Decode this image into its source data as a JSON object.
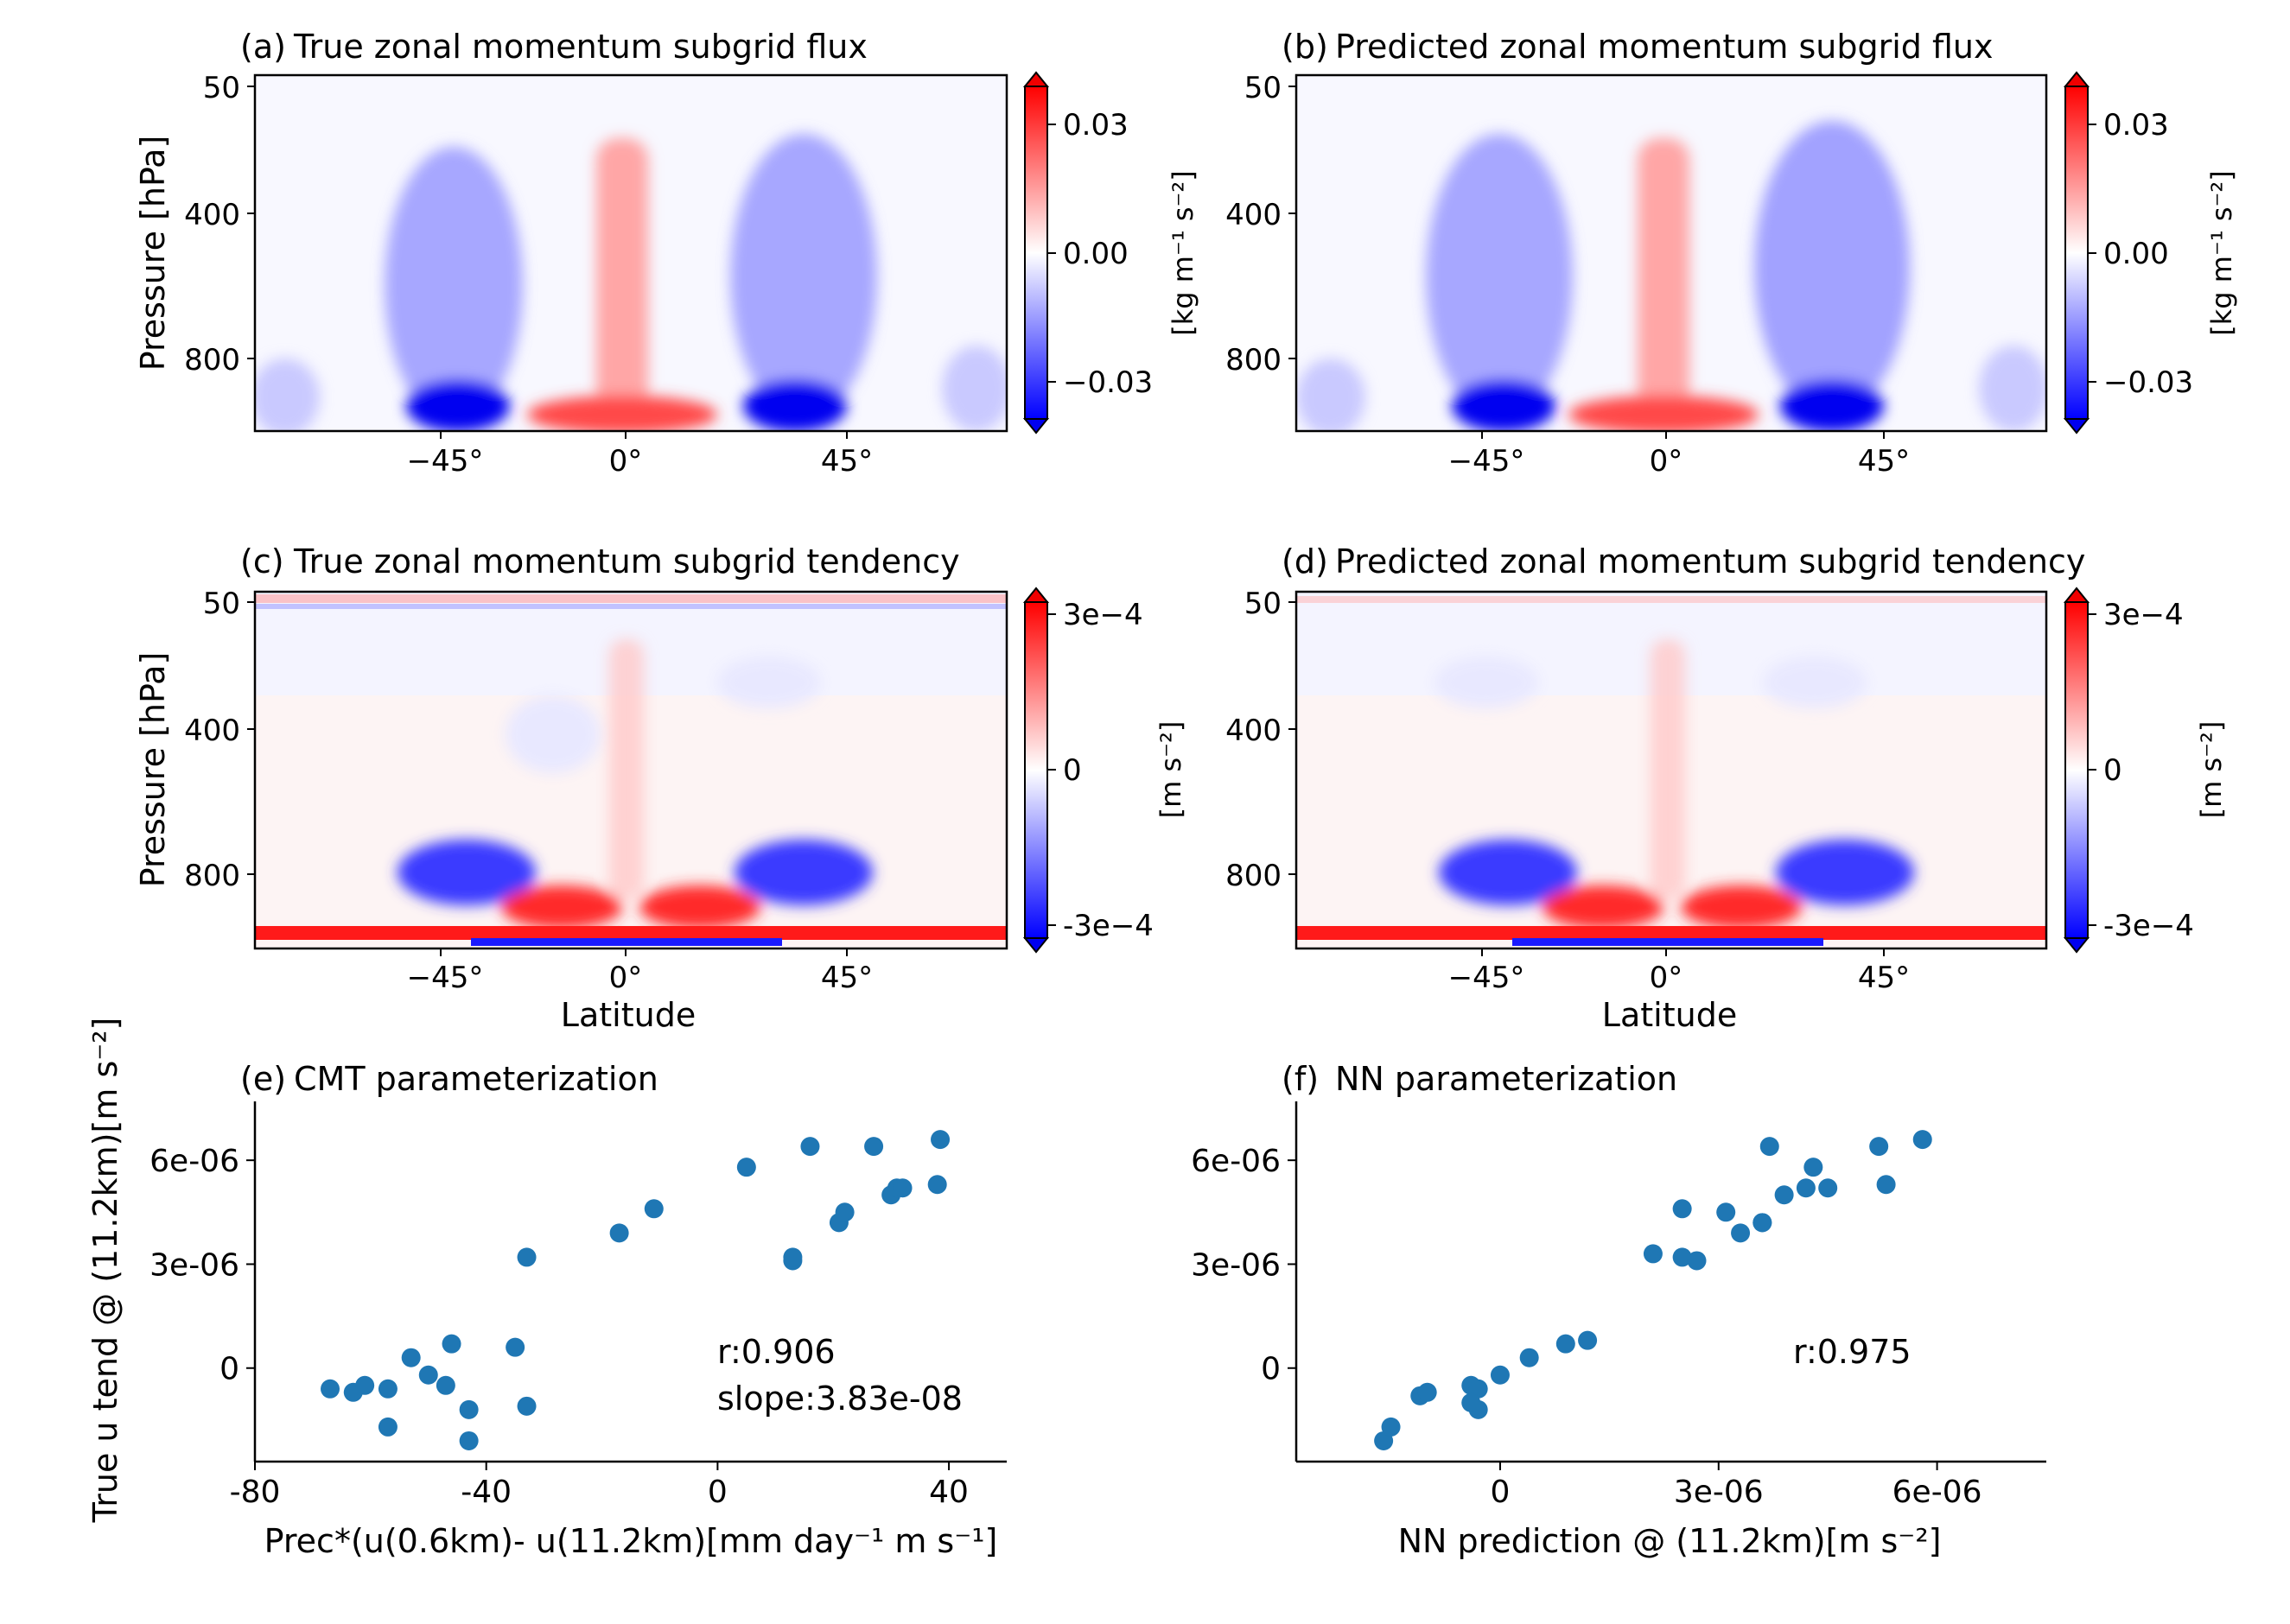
{
  "chart_data": [
    {
      "panel": "a",
      "type": "heatmap",
      "title_letter": "(a)",
      "title": "True zonal momentum subgrid flux",
      "xlabel": "",
      "ylabel": "Pressure [hPa]",
      "xticks": [
        "−45°",
        "0°",
        "45°"
      ],
      "yticks": [
        "50",
        "400",
        "800"
      ],
      "xlim": [
        -80,
        80
      ],
      "colorbar": {
        "ticks": [
          "0.03",
          "0.00",
          "−0.03"
        ],
        "label": "[kg m⁻¹ s⁻²]",
        "range": [
          -0.04,
          0.04
        ],
        "cmap": "bwr"
      }
    },
    {
      "panel": "b",
      "type": "heatmap",
      "title_letter": "(b)",
      "title": "Predicted zonal momentum subgrid flux",
      "xlabel": "",
      "ylabel": "",
      "xticks": [
        "−45°",
        "0°",
        "45°"
      ],
      "yticks": [
        "50",
        "400",
        "800"
      ],
      "xlim": [
        -80,
        80
      ],
      "colorbar": {
        "ticks": [
          "0.03",
          "0.00",
          "−0.03"
        ],
        "label": "[kg m⁻¹ s⁻²]",
        "range": [
          -0.04,
          0.04
        ],
        "cmap": "bwr"
      }
    },
    {
      "panel": "c",
      "type": "heatmap",
      "title_letter": "(c)",
      "title": "True zonal momentum subgrid tendency",
      "xlabel": "Latitude",
      "ylabel": "Pressure [hPa]",
      "xticks": [
        "−45°",
        "0°",
        "45°"
      ],
      "yticks": [
        "50",
        "400",
        "800"
      ],
      "xlim": [
        -80,
        80
      ],
      "colorbar": {
        "ticks": [
          "3e−4",
          "0",
          "-3e−4"
        ],
        "label": "[m s⁻²]",
        "range": [
          -0.0004,
          0.0004
        ],
        "cmap": "bwr"
      }
    },
    {
      "panel": "d",
      "type": "heatmap",
      "title_letter": "(d)",
      "title": "Predicted zonal momentum subgrid tendency",
      "xlabel": "Latitude",
      "ylabel": "",
      "xticks": [
        "−45°",
        "0°",
        "45°"
      ],
      "yticks": [
        "50",
        "400",
        "800"
      ],
      "xlim": [
        -80,
        80
      ],
      "colorbar": {
        "ticks": [
          "3e−4",
          "0",
          "-3e−4"
        ],
        "label": "[m s⁻²]",
        "range": [
          -0.0004,
          0.0004
        ],
        "cmap": "bwr"
      }
    },
    {
      "panel": "e",
      "type": "scatter",
      "title_letter": "(e)",
      "title": "CMT parameterization",
      "xlabel": "Prec*(u(0.6km)- u(11.2km)[mm day⁻¹ m s⁻¹]",
      "ylabel": "True u tend @ (11.2km)[m s⁻²]",
      "xticks": [
        "-80",
        "-40",
        "0",
        "40"
      ],
      "xtick_values": [
        -80,
        -40,
        0,
        40
      ],
      "yticks": [
        "0",
        "3e-06",
        "6e-06"
      ],
      "ytick_values": [
        0,
        3e-06,
        6e-06
      ],
      "xlim": [
        -80,
        50
      ],
      "ylim": [
        -2.7e-06,
        7.7e-06
      ],
      "color": "#1f77b4",
      "annotations": [
        "r:0.906",
        "slope:3.83e-08"
      ],
      "x": [
        -67,
        -63,
        -61,
        -57,
        -57,
        -53,
        -50,
        -47,
        -46,
        -43,
        -43,
        -35,
        -33,
        -33,
        -17,
        -11,
        5,
        13,
        13,
        16,
        21,
        22,
        27,
        30,
        31,
        32,
        38,
        38.5
      ],
      "y": [
        -6e-07,
        -7e-07,
        -5e-07,
        -1.7e-06,
        -6e-07,
        3e-07,
        -2e-07,
        -5e-07,
        7e-07,
        -1.2e-06,
        -2.1e-06,
        6e-07,
        -1.1e-06,
        3.2e-06,
        3.9e-06,
        4.6e-06,
        5.8e-06,
        3.1e-06,
        3.2e-06,
        6.4e-06,
        4.2e-06,
        4.5e-06,
        6.4e-06,
        5e-06,
        5.2e-06,
        5.2e-06,
        5.3e-06,
        6.6e-06
      ]
    },
    {
      "panel": "f",
      "type": "scatter",
      "title_letter": "(f)",
      "title": "NN parameterization",
      "xlabel": "NN prediction @ (11.2km)[m s⁻²]",
      "ylabel": "",
      "xticks": [
        "0",
        "3e-06",
        "6e-06"
      ],
      "xtick_values": [
        0,
        3e-06,
        6e-06
      ],
      "yticks": [
        "0",
        "3e-06",
        "6e-06"
      ],
      "ytick_values": [
        0,
        3e-06,
        6e-06
      ],
      "xlim": [
        -2.8e-06,
        7.5e-06
      ],
      "ylim": [
        -2.7e-06,
        7.7e-06
      ],
      "color": "#1f77b4",
      "annotations": [
        "r:0.975"
      ],
      "x": [
        -1.6e-06,
        -1.5e-06,
        -1.1e-06,
        -1e-06,
        -4e-07,
        -3e-07,
        -3e-07,
        -4e-07,
        0,
        4e-07,
        9e-07,
        1.2e-06,
        2.1e-06,
        2.5e-06,
        2.5e-06,
        2.7e-06,
        3.1e-06,
        3.3e-06,
        3.6e-06,
        3.7e-06,
        3.9e-06,
        4.2e-06,
        4.3e-06,
        4.5e-06,
        5.2e-06,
        5.3e-06,
        5.8e-06,
        3.6e-06
      ],
      "y": [
        -2.1e-06,
        -1.7e-06,
        -8e-07,
        -7e-07,
        -5e-07,
        -6e-07,
        -1.2e-06,
        -1e-06,
        -2e-07,
        3e-07,
        7e-07,
        8e-07,
        3.3e-06,
        3.2e-06,
        4.6e-06,
        3.1e-06,
        4.5e-06,
        3.9e-06,
        4.2e-06,
        6.4e-06,
        5e-06,
        5.2e-06,
        5.8e-06,
        5.2e-06,
        6.4e-06,
        5.3e-06,
        6.6e-06,
        4.2e-06
      ]
    }
  ]
}
